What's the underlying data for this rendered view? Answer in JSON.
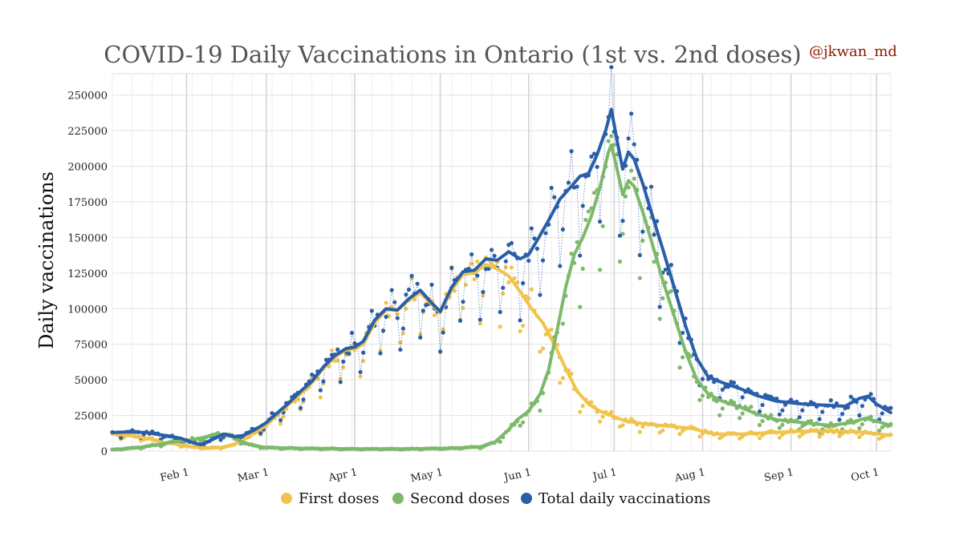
{
  "chart_data": {
    "type": "line",
    "title": "COVID-19 Daily Vaccinations in Ontario (1st vs. 2nd doses)",
    "credit": "@jkwan_md",
    "ylabel": "Daily vaccinations",
    "xlabel": "",
    "x_start": "2021-01-06",
    "x_end": "2021-10-06",
    "ylim": [
      0,
      265000
    ],
    "yticks": [
      0,
      25000,
      50000,
      75000,
      100000,
      125000,
      150000,
      175000,
      200000,
      225000,
      250000
    ],
    "ytick_labels": [
      "0",
      "25000",
      "50000",
      "75000",
      "100000",
      "125000",
      "150000",
      "175000",
      "200000",
      "225000",
      "250000"
    ],
    "xticks": [
      {
        "date": "2021-02-01",
        "label": "Feb 1"
      },
      {
        "date": "2021-03-01",
        "label": "Mar 1"
      },
      {
        "date": "2021-04-01",
        "label": "Apr 1"
      },
      {
        "date": "2021-05-01",
        "label": "May 1"
      },
      {
        "date": "2021-06-01",
        "label": "Jun 1"
      },
      {
        "date": "2021-07-01",
        "label": "Jul 1"
      },
      {
        "date": "2021-08-01",
        "label": "Aug 1"
      },
      {
        "date": "2021-09-01",
        "label": "Sep 1"
      },
      {
        "date": "2021-10-01",
        "label": "Oct 1"
      }
    ],
    "grid": true,
    "legend_position": "bottom",
    "series": [
      {
        "name": "First doses",
        "color": "#f0c44c",
        "trend": [
          [
            "2021-01-06",
            12000
          ],
          [
            "2021-01-12",
            11000
          ],
          [
            "2021-01-18",
            9000
          ],
          [
            "2021-01-24",
            6000
          ],
          [
            "2021-01-30",
            4500
          ],
          [
            "2021-02-03",
            3000
          ],
          [
            "2021-02-08",
            2200
          ],
          [
            "2021-02-13",
            2500
          ],
          [
            "2021-02-17",
            4000
          ],
          [
            "2021-02-21",
            8000
          ],
          [
            "2021-02-25",
            13000
          ],
          [
            "2021-03-01",
            18000
          ],
          [
            "2021-03-05",
            26000
          ],
          [
            "2021-03-09",
            33000
          ],
          [
            "2021-03-13",
            40000
          ],
          [
            "2021-03-17",
            48000
          ],
          [
            "2021-03-21",
            58000
          ],
          [
            "2021-03-25",
            66000
          ],
          [
            "2021-03-29",
            71000
          ],
          [
            "2021-04-01",
            72000
          ],
          [
            "2021-04-04",
            75000
          ],
          [
            "2021-04-08",
            90000
          ],
          [
            "2021-04-12",
            99000
          ],
          [
            "2021-04-16",
            99000
          ],
          [
            "2021-04-20",
            106000
          ],
          [
            "2021-04-24",
            111000
          ],
          [
            "2021-04-28",
            103000
          ],
          [
            "2021-05-01",
            97000
          ],
          [
            "2021-05-05",
            113000
          ],
          [
            "2021-05-09",
            124000
          ],
          [
            "2021-05-13",
            125000
          ],
          [
            "2021-05-17",
            131000
          ],
          [
            "2021-05-21",
            128000
          ],
          [
            "2021-05-25",
            123000
          ],
          [
            "2021-05-29",
            112000
          ],
          [
            "2021-06-02",
            100000
          ],
          [
            "2021-06-06",
            90000
          ],
          [
            "2021-06-10",
            75000
          ],
          [
            "2021-06-14",
            58000
          ],
          [
            "2021-06-18",
            42000
          ],
          [
            "2021-06-22",
            33000
          ],
          [
            "2021-06-26",
            28000
          ],
          [
            "2021-06-30",
            25000
          ],
          [
            "2021-07-05",
            21000
          ],
          [
            "2021-07-12",
            19000
          ],
          [
            "2021-07-20",
            17500
          ],
          [
            "2021-07-28",
            16000
          ],
          [
            "2021-08-05",
            12000
          ],
          [
            "2021-08-15",
            12000
          ],
          [
            "2021-08-25",
            13000
          ],
          [
            "2021-09-05",
            14000
          ],
          [
            "2021-09-15",
            14000
          ],
          [
            "2021-09-25",
            13500
          ],
          [
            "2021-10-06",
            11000
          ]
        ]
      },
      {
        "name": "Second doses",
        "color": "#7cb96a",
        "trend": [
          [
            "2021-01-06",
            1000
          ],
          [
            "2021-01-15",
            2500
          ],
          [
            "2021-01-22",
            4500
          ],
          [
            "2021-01-28",
            6500
          ],
          [
            "2021-02-03",
            8000
          ],
          [
            "2021-02-08",
            10000
          ],
          [
            "2021-02-12",
            12000
          ],
          [
            "2021-02-16",
            11000
          ],
          [
            "2021-02-20",
            7000
          ],
          [
            "2021-02-24",
            4000
          ],
          [
            "2021-03-01",
            2500
          ],
          [
            "2021-03-10",
            2000
          ],
          [
            "2021-04-01",
            1500
          ],
          [
            "2021-04-20",
            1500
          ],
          [
            "2021-05-05",
            2000
          ],
          [
            "2021-05-15",
            3000
          ],
          [
            "2021-05-20",
            6000
          ],
          [
            "2021-05-25",
            15000
          ],
          [
            "2021-05-28",
            22000
          ],
          [
            "2021-06-01",
            28000
          ],
          [
            "2021-06-05",
            40000
          ],
          [
            "2021-06-08",
            57000
          ],
          [
            "2021-06-11",
            85000
          ],
          [
            "2021-06-14",
            115000
          ],
          [
            "2021-06-17",
            138000
          ],
          [
            "2021-06-20",
            150000
          ],
          [
            "2021-06-23",
            165000
          ],
          [
            "2021-06-26",
            185000
          ],
          [
            "2021-06-29",
            210000
          ],
          [
            "2021-06-30",
            215000
          ],
          [
            "2021-07-02",
            198000
          ],
          [
            "2021-07-04",
            180000
          ],
          [
            "2021-07-06",
            190000
          ],
          [
            "2021-07-08",
            186000
          ],
          [
            "2021-07-11",
            168000
          ],
          [
            "2021-07-14",
            148000
          ],
          [
            "2021-07-18",
            120000
          ],
          [
            "2021-07-22",
            95000
          ],
          [
            "2021-07-26",
            70000
          ],
          [
            "2021-07-30",
            50000
          ],
          [
            "2021-08-03",
            40000
          ],
          [
            "2021-08-08",
            35000
          ],
          [
            "2021-08-14",
            31000
          ],
          [
            "2021-08-20",
            26000
          ],
          [
            "2021-08-27",
            22000
          ],
          [
            "2021-09-05",
            20000
          ],
          [
            "2021-09-15",
            18000
          ],
          [
            "2021-09-22",
            20000
          ],
          [
            "2021-09-27",
            23000
          ],
          [
            "2021-10-01",
            21000
          ],
          [
            "2021-10-06",
            18000
          ]
        ]
      },
      {
        "name": "Total daily vaccinations",
        "color": "#2a5ea8",
        "trend": [
          [
            "2021-01-06",
            13000
          ],
          [
            "2021-01-12",
            13500
          ],
          [
            "2021-01-18",
            13000
          ],
          [
            "2021-01-24",
            11000
          ],
          [
            "2021-01-30",
            9000
          ],
          [
            "2021-02-03",
            6000
          ],
          [
            "2021-02-06",
            4500
          ],
          [
            "2021-02-10",
            8000
          ],
          [
            "2021-02-14",
            12000
          ],
          [
            "2021-02-18",
            10000
          ],
          [
            "2021-02-21",
            11000
          ],
          [
            "2021-02-25",
            15000
          ],
          [
            "2021-03-01",
            20000
          ],
          [
            "2021-03-05",
            27000
          ],
          [
            "2021-03-09",
            34000
          ],
          [
            "2021-03-13",
            42000
          ],
          [
            "2021-03-17",
            49000
          ],
          [
            "2021-03-21",
            59000
          ],
          [
            "2021-03-25",
            67000
          ],
          [
            "2021-03-29",
            72000
          ],
          [
            "2021-04-01",
            73000
          ],
          [
            "2021-04-04",
            77000
          ],
          [
            "2021-04-08",
            92000
          ],
          [
            "2021-04-12",
            100000
          ],
          [
            "2021-04-16",
            99000
          ],
          [
            "2021-04-20",
            107000
          ],
          [
            "2021-04-24",
            113000
          ],
          [
            "2021-04-28",
            104000
          ],
          [
            "2021-05-01",
            98000
          ],
          [
            "2021-05-05",
            115000
          ],
          [
            "2021-05-09",
            126000
          ],
          [
            "2021-05-13",
            127000
          ],
          [
            "2021-05-17",
            135000
          ],
          [
            "2021-05-21",
            134000
          ],
          [
            "2021-05-25",
            140000
          ],
          [
            "2021-05-29",
            135000
          ],
          [
            "2021-06-01",
            138000
          ],
          [
            "2021-06-04",
            148000
          ],
          [
            "2021-06-08",
            162000
          ],
          [
            "2021-06-12",
            177000
          ],
          [
            "2021-06-16",
            186000
          ],
          [
            "2021-06-19",
            193000
          ],
          [
            "2021-06-22",
            195000
          ],
          [
            "2021-06-25",
            208000
          ],
          [
            "2021-06-28",
            225000
          ],
          [
            "2021-06-30",
            240000
          ],
          [
            "2021-07-02",
            218000
          ],
          [
            "2021-07-04",
            198000
          ],
          [
            "2021-07-06",
            210000
          ],
          [
            "2021-07-08",
            205000
          ],
          [
            "2021-07-11",
            188000
          ],
          [
            "2021-07-14",
            168000
          ],
          [
            "2021-07-18",
            142000
          ],
          [
            "2021-07-22",
            115000
          ],
          [
            "2021-07-26",
            88000
          ],
          [
            "2021-07-30",
            65000
          ],
          [
            "2021-08-03",
            52000
          ],
          [
            "2021-08-08",
            48000
          ],
          [
            "2021-08-14",
            44000
          ],
          [
            "2021-08-20",
            39000
          ],
          [
            "2021-08-27",
            35000
          ],
          [
            "2021-09-05",
            33000
          ],
          [
            "2021-09-15",
            32000
          ],
          [
            "2021-09-20",
            31500
          ],
          [
            "2021-09-25",
            37000
          ],
          [
            "2021-09-28",
            38500
          ],
          [
            "2021-10-01",
            33000
          ],
          [
            "2021-10-06",
            27000
          ]
        ]
      }
    ]
  }
}
